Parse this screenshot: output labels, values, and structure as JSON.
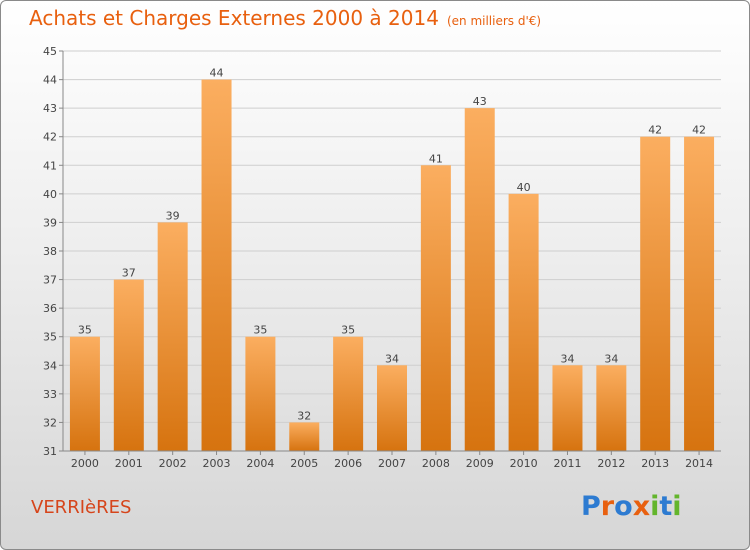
{
  "title": "Achats et Charges Externes 2000 à 2014",
  "subtitle": "(en milliers d'€)",
  "location": "VERRIèRES",
  "logo": {
    "text": "Proxiti",
    "letter_colors": [
      "#2d7bd1",
      "#e8600f",
      "#2d7bd1",
      "#e8600f",
      "#63b52c",
      "#2d7bd1",
      "#63b52c"
    ]
  },
  "colors": {
    "title": "#e8600f",
    "bar_light": "#fbae60",
    "bar_dark": "#d6730f",
    "grid": "#cfcfcf",
    "location": "#d6451b"
  },
  "chart_data": {
    "type": "bar",
    "title": "Achats et Charges Externes 2000 à 2014",
    "subtitle": "(en milliers d'€)",
    "categories": [
      "2000",
      "2001",
      "2002",
      "2003",
      "2004",
      "2005",
      "2006",
      "2007",
      "2008",
      "2009",
      "2010",
      "2011",
      "2012",
      "2013",
      "2014"
    ],
    "values": [
      35,
      37,
      39,
      44,
      35,
      32,
      35,
      34,
      41,
      43,
      40,
      34,
      34,
      42,
      42
    ],
    "data_labels": [
      "35",
      "37",
      "39",
      "44",
      "35",
      "32",
      "35",
      "34",
      "41",
      "43",
      "40",
      "34",
      "34",
      "42",
      "42"
    ],
    "ylim": [
      31,
      45
    ],
    "yticks": [
      "31",
      "32",
      "33",
      "34",
      "35",
      "36",
      "37",
      "38",
      "39",
      "40",
      "41",
      "42",
      "43",
      "44",
      "45"
    ],
    "grid": true,
    "legend": "none"
  }
}
